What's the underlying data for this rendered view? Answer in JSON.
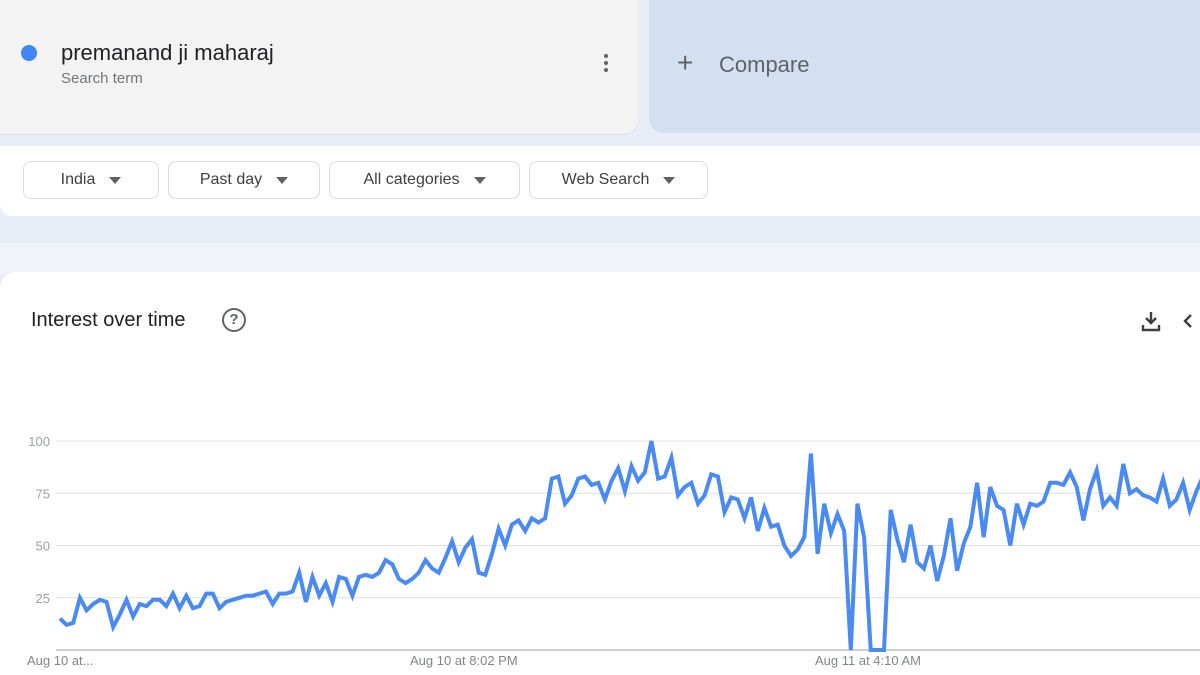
{
  "search_term": {
    "name": "premanand ji maharaj",
    "subtitle": "Search term",
    "color": "#4285f4",
    "menu_icon": "more-vert-icon"
  },
  "compare": {
    "icon": "plus-icon",
    "label": "Compare"
  },
  "filters": [
    {
      "label": "India"
    },
    {
      "label": "Past day"
    },
    {
      "label": "All categories"
    },
    {
      "label": "Web Search"
    }
  ],
  "section": {
    "title": "Interest over time",
    "help_icon": "help-icon",
    "download_icon": "download-icon",
    "embed_icon": "embed-code-icon"
  },
  "chart_data": {
    "type": "line",
    "title": "",
    "xlabel": "",
    "ylabel": "",
    "ylim": [
      0,
      100
    ],
    "yticks": [
      "100",
      "75",
      "50",
      "25"
    ],
    "xtick_labels": [
      "Aug 10 at...",
      "Aug 10 at 8:02 PM",
      "Aug 11 at 4:10 AM"
    ],
    "grid": true,
    "line_color": "#4a8af4",
    "values": [
      15,
      12,
      13,
      25,
      19,
      22,
      24,
      23,
      11,
      17,
      24,
      16,
      22,
      21,
      24,
      24,
      21,
      27,
      20,
      26,
      20,
      21,
      27,
      27,
      20,
      23,
      24,
      25,
      26,
      26,
      27,
      28,
      22,
      27,
      27,
      28,
      37,
      23,
      35,
      26,
      32,
      23,
      35,
      34,
      26,
      35,
      36,
      35,
      37,
      43,
      41,
      34,
      32,
      34,
      37,
      43,
      39,
      37,
      44,
      52,
      42,
      49,
      53,
      37,
      36,
      46,
      58,
      50,
      60,
      62,
      57,
      63,
      61,
      63,
      82,
      83,
      70,
      74,
      82,
      83,
      79,
      80,
      72,
      81,
      87,
      76,
      88,
      81,
      85,
      100,
      82,
      83,
      92,
      74,
      78,
      80,
      70,
      74,
      84,
      83,
      66,
      73,
      72,
      63,
      73,
      57,
      68,
      59,
      60,
      50,
      45,
      48,
      54,
      94,
      46,
      70,
      56,
      65,
      57,
      0,
      70,
      54,
      0,
      0,
      0,
      67,
      53,
      42,
      60,
      42,
      39,
      50,
      33,
      45,
      63,
      38,
      51,
      59,
      80,
      54,
      78,
      69,
      67,
      50,
      70,
      60,
      70,
      69,
      71,
      80,
      80,
      79,
      85,
      78,
      62,
      77,
      86,
      69,
      73,
      69,
      89,
      75,
      77,
      74,
      73,
      71,
      82,
      69,
      72,
      80,
      67,
      76,
      83
    ]
  }
}
